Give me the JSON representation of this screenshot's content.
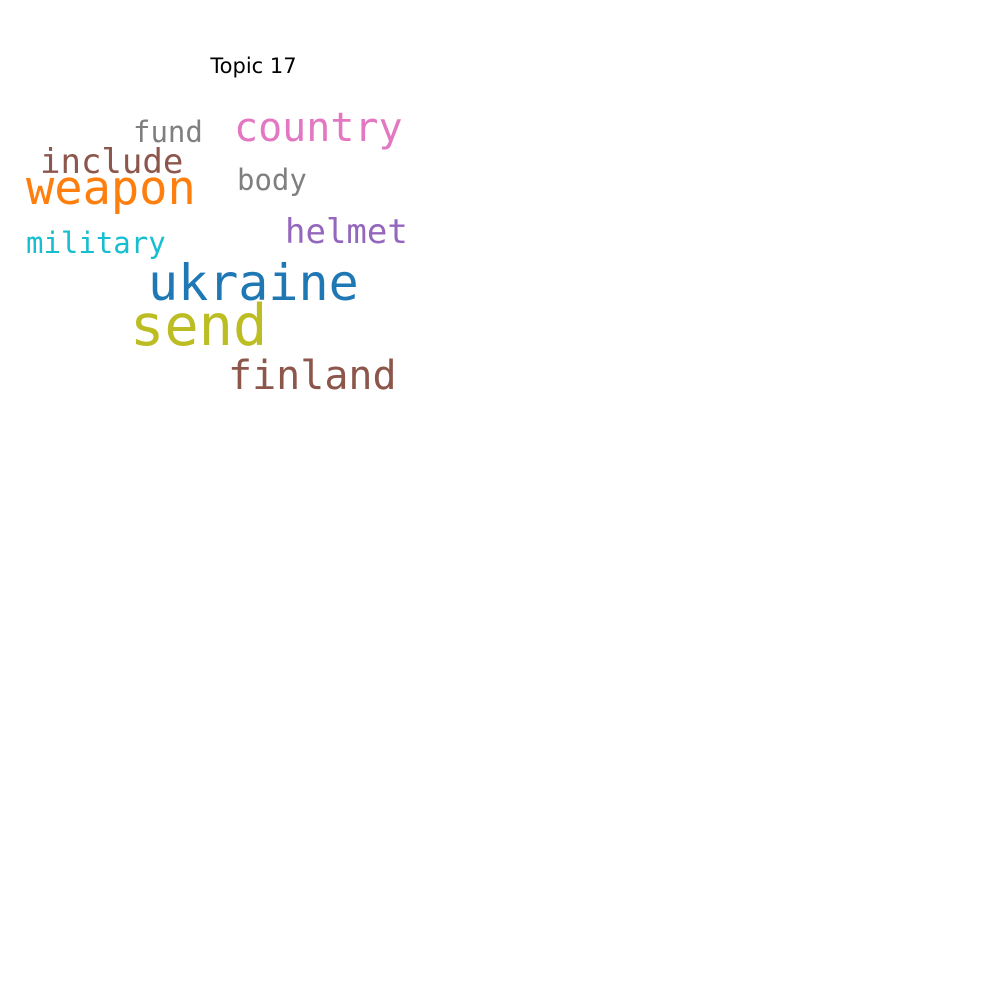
{
  "title": "Topic 17",
  "words": [
    {
      "text": "country",
      "color": "#e377c2",
      "weight": 0.72
    },
    {
      "text": "fund",
      "color": "#7f7f7f",
      "weight": 0.55
    },
    {
      "text": "include",
      "color": "#8c564b",
      "weight": 0.63
    },
    {
      "text": "weapon",
      "color": "#ff7f0e",
      "weight": 0.85
    },
    {
      "text": "body",
      "color": "#7f7f7f",
      "weight": 0.55
    },
    {
      "text": "helmet",
      "color": "#9467bd",
      "weight": 0.63
    },
    {
      "text": "military",
      "color": "#17becf",
      "weight": 0.55
    },
    {
      "text": "ukraine",
      "color": "#1f77b4",
      "weight": 0.92
    },
    {
      "text": "send",
      "color": "#bcbd22",
      "weight": 1.0
    },
    {
      "text": "finland",
      "color": "#8c564b",
      "weight": 0.72
    }
  ]
}
